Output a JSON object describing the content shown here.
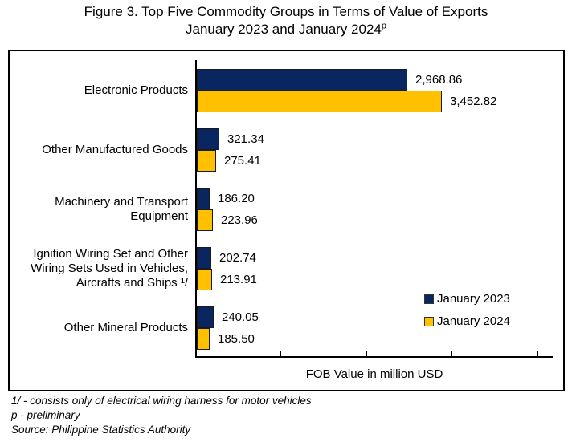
{
  "title": {
    "line1": "Figure 3. Top Five Commodity Groups in Terms of Value of Exports",
    "line2": "January 2023 and January 2024",
    "line2_sup": "p"
  },
  "chart_data": {
    "type": "bar",
    "orientation": "horizontal",
    "title": "Figure 3. Top Five Commodity Groups in Terms of Value of Exports January 2023 and January 2024p",
    "xlabel": "FOB Value in million USD",
    "ylabel": "",
    "xlim": [
      0,
      5000
    ],
    "x_tick_labels_shown": false,
    "grid": false,
    "legend_position": "inside-right",
    "categories": [
      "Electronic Products",
      "Other Manufactured Goods",
      "Machinery and Transport Equipment",
      "Ignition Wiring Set and Other Wiring Sets Used in Vehicles, Aircrafts and Ships 1/",
      "Other Mineral Products"
    ],
    "categories_lines": [
      [
        "Electronic Products"
      ],
      [
        "Other Manufactured Goods"
      ],
      [
        "Machinery and Transport",
        "Equipment"
      ],
      [
        "Ignition Wiring Set and Other",
        "Wiring Sets Used in Vehicles,",
        "Aircrafts and Ships ¹/"
      ],
      [
        "Other Mineral Products"
      ]
    ],
    "series": [
      {
        "name": "January 2023",
        "color": "#0A2661",
        "values": [
          2968.86,
          321.34,
          186.2,
          202.74,
          240.05
        ],
        "labels": [
          "2,968.86",
          "321.34",
          "186.20",
          "202.74",
          "240.05"
        ]
      },
      {
        "name": "January 2024",
        "color": "#FFC000",
        "values": [
          3452.82,
          275.41,
          223.96,
          213.91,
          185.5
        ],
        "labels": [
          "3,452.82",
          "275.41",
          "223.96",
          "213.91",
          "185.50"
        ]
      }
    ]
  },
  "legend": [
    {
      "label": "January 2023",
      "color": "#0A2661"
    },
    {
      "label": "January 2024",
      "color": "#FFC000"
    }
  ],
  "footnotes": [
    "1/ - consists only of electrical wiring harness for motor vehicles",
    "p - preliminary",
    "Source: Philippine Statistics Authority"
  ]
}
